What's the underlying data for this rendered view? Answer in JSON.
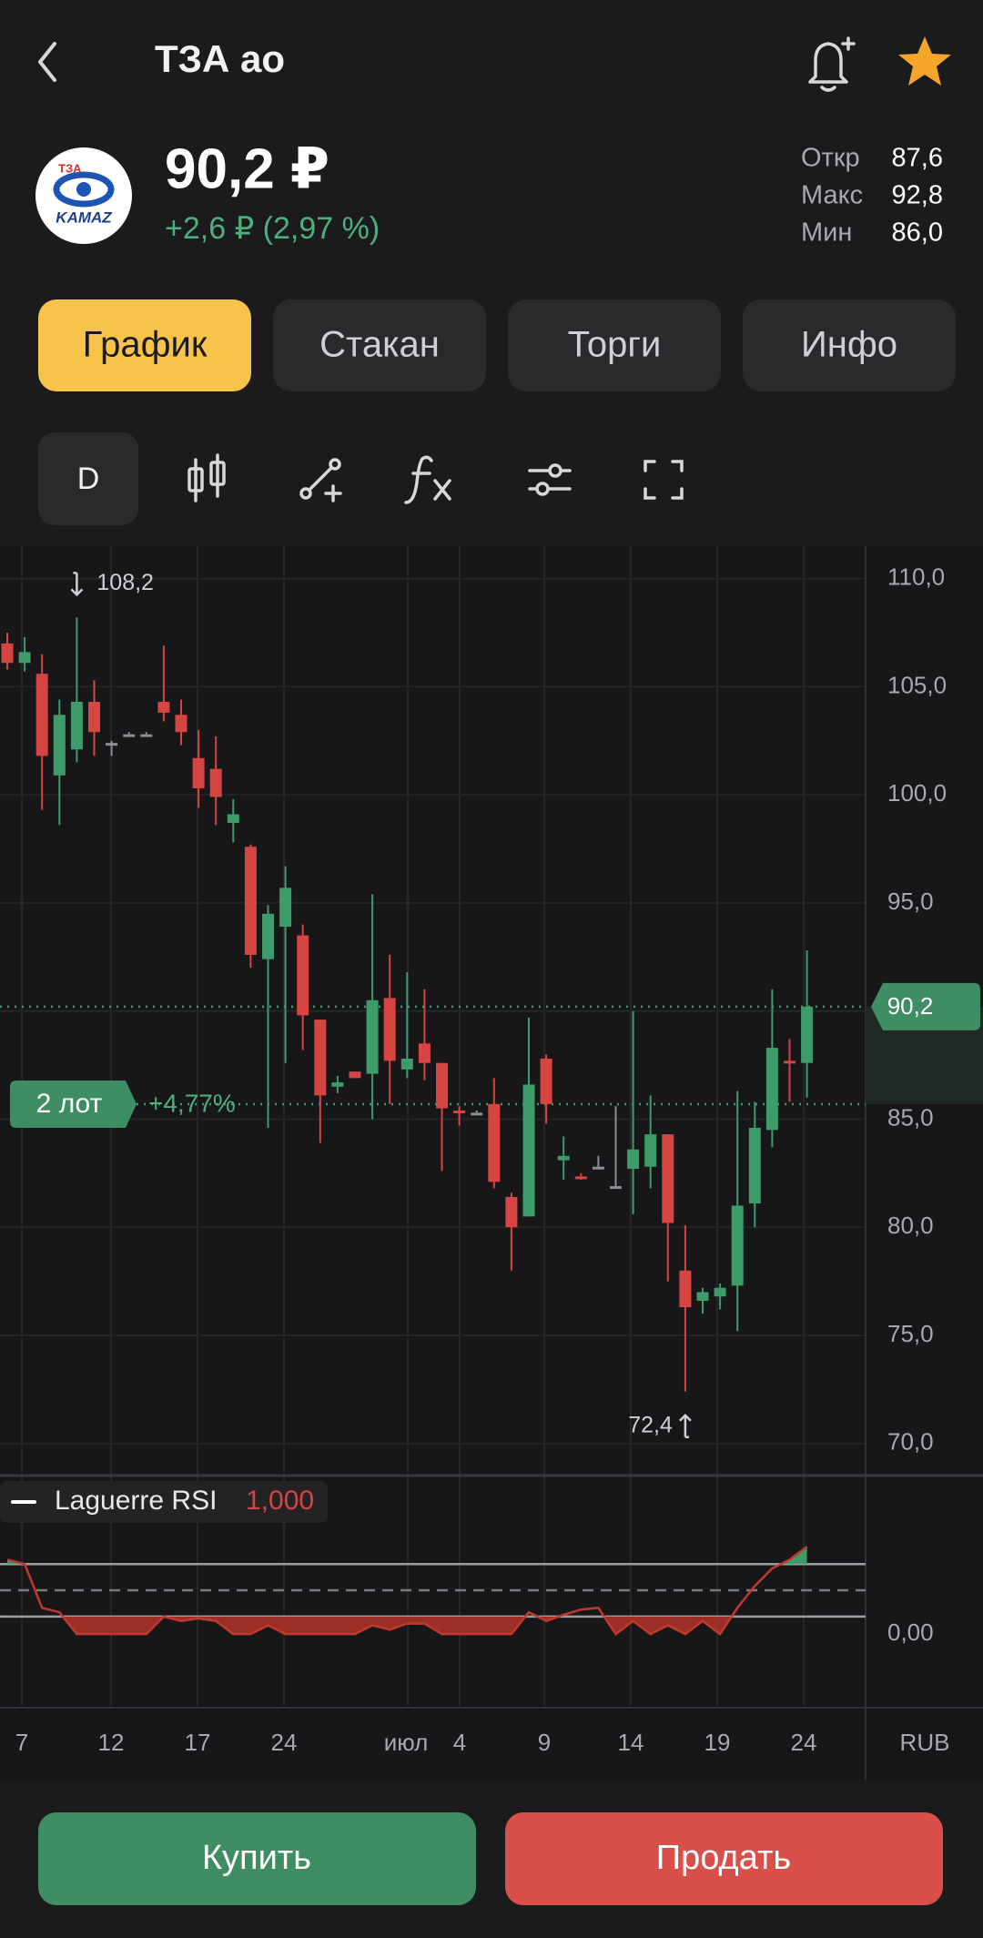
{
  "header": {
    "title": "ТЗА ао"
  },
  "logo": {
    "top": "ТЗА",
    "bottom": "KAMAZ"
  },
  "quote": {
    "price": "90,2 ₽",
    "change": "+2,6 ₽ (2,97 %)",
    "stats": [
      {
        "label": "Откр",
        "value": "87,6"
      },
      {
        "label": "Макс",
        "value": "92,8"
      },
      {
        "label": "Мин",
        "value": "86,0"
      }
    ]
  },
  "tabs": [
    "График",
    "Стакан",
    "Торги",
    "Инфо"
  ],
  "toolbar": {
    "interval": "D"
  },
  "chart_data": {
    "type": "candlestick",
    "up_color": "#3e9b6a",
    "down_color": "#d64541",
    "flat_color": "#8e8e93",
    "open": [
      107.0,
      106.1,
      105.6,
      100.9,
      102.1,
      104.3,
      102.4,
      102.8,
      102.8,
      104.3,
      103.7,
      101.7,
      101.2,
      98.7,
      97.6,
      92.4,
      93.9,
      93.5,
      89.6,
      86.5,
      87.2,
      87.1,
      90.6,
      87.3,
      88.5,
      87.6,
      85.4,
      85.3,
      85.7,
      81.4,
      80.5,
      87.8,
      83.1,
      82.35,
      82.8,
      81.9,
      82.7,
      82.8,
      84.3,
      78.0,
      76.6,
      76.8,
      77.3,
      81.1,
      84.5,
      87.7,
      87.6
    ],
    "high": [
      107.5,
      107.3,
      106.5,
      104.4,
      108.2,
      105.3,
      102.5,
      102.9,
      102.9,
      106.9,
      104.4,
      103.0,
      102.7,
      99.8,
      97.7,
      94.9,
      96.7,
      94.0,
      89.6,
      87.0,
      87.2,
      95.4,
      92.6,
      91.8,
      91.0,
      87.6,
      85.6,
      85.4,
      86.9,
      81.6,
      89.7,
      88.0,
      84.2,
      82.5,
      83.3,
      85.6,
      90.0,
      86.1,
      84.3,
      80.1,
      77.2,
      77.4,
      86.3,
      85.8,
      91.0,
      88.7,
      92.8
    ],
    "low": [
      105.8,
      105.7,
      99.3,
      98.6,
      101.5,
      101.8,
      101.8,
      102.8,
      102.8,
      103.4,
      102.3,
      99.4,
      98.6,
      97.8,
      92.0,
      84.6,
      87.6,
      88.2,
      83.9,
      86.2,
      86.9,
      85.0,
      85.7,
      86.9,
      86.8,
      82.6,
      84.7,
      85.3,
      81.8,
      78.0,
      80.5,
      84.8,
      82.2,
      82.2,
      82.8,
      81.9,
      80.6,
      81.8,
      77.5,
      72.4,
      76.0,
      76.2,
      75.2,
      80.0,
      83.7,
      85.8,
      86.0
    ],
    "close": [
      106.1,
      106.6,
      101.8,
      103.7,
      104.3,
      102.9,
      102.4,
      102.8,
      102.8,
      103.8,
      102.9,
      100.3,
      99.9,
      99.1,
      92.6,
      94.5,
      95.7,
      89.8,
      86.1,
      86.7,
      86.9,
      90.5,
      87.7,
      87.8,
      87.6,
      85.5,
      85.3,
      85.3,
      82.1,
      80.0,
      86.6,
      85.7,
      83.3,
      82.3,
      82.8,
      81.9,
      83.6,
      84.3,
      80.2,
      76.3,
      77.0,
      77.2,
      81.0,
      84.6,
      88.3,
      87.6,
      90.2
    ],
    "ylim": [
      68.6,
      111.5
    ],
    "yticks": [
      {
        "value": 110,
        "label": "110,0"
      },
      {
        "value": 105,
        "label": "105,0"
      },
      {
        "value": 100,
        "label": "100,0"
      },
      {
        "value": 95,
        "label": "95,0"
      },
      {
        "value": 90,
        "label": "90,0"
      },
      {
        "value": 85,
        "label": "85,0"
      },
      {
        "value": 80,
        "label": "80,0"
      },
      {
        "value": 75,
        "label": "75,0"
      },
      {
        "value": 70,
        "label": "70,0"
      }
    ],
    "last_price": {
      "value": 90.2,
      "label": "90,2"
    },
    "position": {
      "label": "2 лот",
      "change": "+4,77%"
    },
    "annotations": [
      {
        "value": 108.2,
        "label": "108,2"
      },
      {
        "value": 72.4,
        "label": "72,4"
      }
    ],
    "x_labels": [
      "7",
      "12",
      "17",
      "24",
      "июл",
      "4",
      "9",
      "14",
      "19",
      "24"
    ],
    "currency": "RUB",
    "indicator": {
      "name": "Laguerre RSI",
      "value": "1,000",
      "values": [
        0.85,
        0.8,
        0.3,
        0.25,
        0,
        0,
        0,
        0,
        0,
        0.2,
        0.15,
        0.18,
        0.15,
        0,
        0,
        0.1,
        0,
        0,
        0,
        0,
        0,
        0.1,
        0.05,
        0.12,
        0.12,
        0,
        0,
        0,
        0,
        0,
        0.25,
        0.15,
        0.22,
        0.28,
        0.3,
        0,
        0.15,
        0,
        0.1,
        0,
        0.15,
        0,
        0.3,
        0.55,
        0.75,
        0.85,
        1
      ],
      "ylim": [
        -0.82,
        1.79
      ],
      "yticks": [
        {
          "value": 0,
          "label": "0,00"
        }
      ],
      "levels": [
        0.2,
        0.5,
        0.8
      ]
    }
  },
  "buttons": {
    "buy": "Купить",
    "sell": "Продать"
  }
}
